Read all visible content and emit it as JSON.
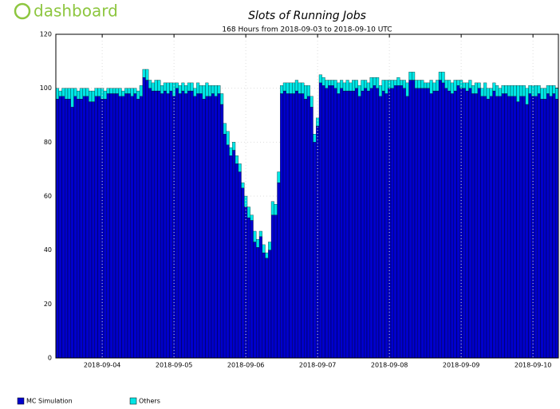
{
  "logo": "dashboard",
  "chart_data": {
    "type": "stacked_bar",
    "title": "Slots of Running Jobs",
    "subtitle": "168 Hours from 2018-09-03 to 2018-09-10 UTC",
    "categories": [
      null,
      null,
      null,
      null,
      null,
      null,
      null,
      null,
      null,
      null,
      null,
      null,
      null,
      null,
      null,
      "2018-09-04",
      null,
      null,
      null,
      null,
      null,
      null,
      null,
      null,
      null,
      null,
      null,
      null,
      null,
      null,
      null,
      null,
      null,
      null,
      null,
      null,
      null,
      null,
      null,
      "2018-09-05",
      null,
      null,
      null,
      null,
      null,
      null,
      null,
      null,
      null,
      null,
      null,
      null,
      null,
      null,
      null,
      null,
      null,
      null,
      null,
      null,
      null,
      null,
      null,
      "2018-09-06",
      null,
      null,
      null,
      null,
      null,
      null,
      null,
      null,
      null,
      null,
      null,
      null,
      null,
      null,
      null,
      null,
      null,
      null,
      null,
      null,
      null,
      null,
      null,
      "2018-09-07",
      null,
      null,
      null,
      null,
      null,
      null,
      null,
      null,
      null,
      null,
      null,
      null,
      null,
      null,
      null,
      null,
      null,
      null,
      null,
      null,
      null,
      null,
      null,
      "2018-09-08",
      null,
      null,
      null,
      null,
      null,
      null,
      null,
      null,
      null,
      null,
      null,
      null,
      null,
      null,
      null,
      null,
      null,
      null,
      null,
      null,
      null,
      null,
      null,
      "2018-09-09",
      null,
      null,
      null,
      null,
      null,
      null,
      null,
      null,
      null,
      null,
      null,
      null,
      null,
      null,
      null,
      null,
      null,
      null,
      null,
      null,
      null,
      null,
      null,
      "2018-09-10",
      null,
      null,
      null,
      null,
      null,
      null,
      null,
      null
    ],
    "series": [
      {
        "name": "MC Simulation",
        "color": "#0000cc",
        "values": [
          96,
          97,
          97,
          96,
          96,
          93,
          97,
          96,
          96,
          97,
          97,
          95,
          95,
          97,
          97,
          96,
          96,
          98,
          98,
          98,
          98,
          97,
          97,
          98,
          98,
          97,
          98,
          96,
          97,
          104,
          103,
          100,
          99,
          99,
          99,
          98,
          99,
          98,
          99,
          97,
          100,
          98,
          99,
          98,
          99,
          99,
          97,
          98,
          98,
          96,
          97,
          97,
          98,
          97,
          98,
          94,
          83,
          79,
          75,
          77,
          72,
          69,
          63,
          56,
          52,
          51,
          43,
          41,
          45,
          39,
          37,
          40,
          53,
          53,
          65,
          98,
          99,
          98,
          98,
          98,
          99,
          98,
          98,
          96,
          97,
          93,
          80,
          86,
          102,
          101,
          100,
          101,
          101,
          100,
          98,
          100,
          99,
          99,
          99,
          99,
          100,
          97,
          99,
          100,
          99,
          100,
          101,
          100,
          97,
          99,
          98,
          100,
          100,
          101,
          101,
          101,
          100,
          97,
          103,
          103,
          100,
          100,
          100,
          100,
          100,
          98,
          99,
          99,
          103,
          102,
          100,
          99,
          98,
          99,
          101,
          100,
          100,
          99,
          100,
          98,
          98,
          100,
          97,
          97,
          96,
          97,
          99,
          97,
          97,
          98,
          98,
          97,
          97,
          97,
          95,
          97,
          97,
          94,
          98,
          97,
          97,
          98,
          96,
          96,
          98,
          97,
          98,
          96
        ]
      },
      {
        "name": "Others",
        "color": "#00e5e5",
        "values": [
          4,
          2,
          3,
          4,
          4,
          7,
          3,
          3,
          4,
          3,
          3,
          4,
          4,
          3,
          3,
          4,
          3,
          2,
          2,
          2,
          2,
          3,
          2,
          2,
          2,
          3,
          2,
          3,
          4,
          3,
          4,
          3,
          3,
          4,
          4,
          3,
          3,
          4,
          3,
          5,
          2,
          3,
          3,
          3,
          3,
          3,
          3,
          4,
          3,
          5,
          5,
          4,
          3,
          4,
          3,
          4,
          4,
          5,
          3,
          3,
          3,
          3,
          2,
          4,
          4,
          2,
          4,
          3,
          2,
          3,
          2,
          3,
          5,
          4,
          4,
          3,
          3,
          4,
          4,
          4,
          4,
          4,
          4,
          5,
          4,
          4,
          3,
          3,
          3,
          3,
          3,
          2,
          2,
          3,
          4,
          3,
          3,
          4,
          3,
          4,
          3,
          4,
          4,
          3,
          3,
          4,
          3,
          4,
          4,
          4,
          5,
          3,
          3,
          2,
          3,
          2,
          3,
          5,
          3,
          3,
          3,
          3,
          3,
          2,
          2,
          5,
          3,
          4,
          3,
          4,
          3,
          4,
          4,
          4,
          2,
          3,
          2,
          3,
          3,
          3,
          4,
          2,
          3,
          5,
          4,
          3,
          3,
          4,
          3,
          3,
          3,
          4,
          4,
          4,
          6,
          4,
          4,
          6,
          3,
          4,
          4,
          3,
          4,
          4,
          3,
          4,
          3,
          4
        ]
      }
    ],
    "ylim": [
      0,
      120
    ],
    "yticks": [
      0,
      20,
      40,
      60,
      80,
      100,
      120
    ],
    "grid": true,
    "legend": "bottom-left"
  }
}
